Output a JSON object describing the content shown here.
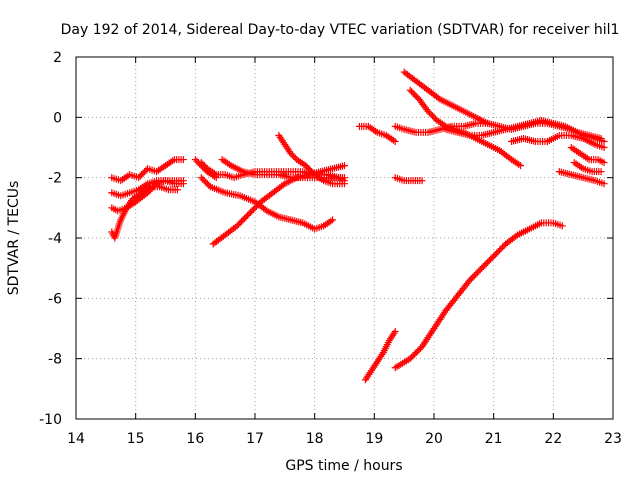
{
  "chart_data": {
    "type": "scatter",
    "title": "Day 192 of 2014, Sidereal Day-to-day VTEC variation (SDTVAR) for receiver hil1",
    "xlabel": "GPS time / hours",
    "ylabel": "SDTVAR / TECUs",
    "xlim": [
      14,
      23
    ],
    "ylim": [
      -10,
      2
    ],
    "xticks": [
      "14",
      "15",
      "16",
      "17",
      "18",
      "19",
      "20",
      "21",
      "22",
      "23"
    ],
    "yticks": [
      "-10",
      "-8",
      "-6",
      "-4",
      "-2",
      "0",
      "2"
    ],
    "grid": true,
    "marker": "+",
    "color": "#ff0000",
    "series": [
      {
        "name": "s1",
        "points": [
          [
            14.6,
            -2.0
          ],
          [
            14.75,
            -2.1
          ],
          [
            14.9,
            -1.9
          ],
          [
            15.05,
            -2.0
          ],
          [
            15.2,
            -1.7
          ],
          [
            15.35,
            -1.8
          ],
          [
            15.5,
            -1.6
          ],
          [
            15.65,
            -1.4
          ],
          [
            15.8,
            -1.4
          ]
        ]
      },
      {
        "name": "s2",
        "points": [
          [
            14.6,
            -3.0
          ],
          [
            14.7,
            -3.1
          ],
          [
            14.85,
            -3.0
          ],
          [
            15.0,
            -2.8
          ],
          [
            15.2,
            -2.5
          ],
          [
            15.35,
            -2.2
          ],
          [
            15.5,
            -2.1
          ],
          [
            15.65,
            -2.2
          ],
          [
            15.8,
            -2.2
          ]
        ]
      },
      {
        "name": "s3",
        "points": [
          [
            14.6,
            -3.8
          ],
          [
            14.65,
            -4.0
          ],
          [
            14.75,
            -3.4
          ],
          [
            14.85,
            -3.0
          ],
          [
            14.95,
            -2.7
          ],
          [
            15.1,
            -2.5
          ],
          [
            15.25,
            -2.3
          ],
          [
            15.4,
            -2.3
          ],
          [
            15.55,
            -2.4
          ],
          [
            15.7,
            -2.4
          ]
        ]
      },
      {
        "name": "s4",
        "points": [
          [
            14.6,
            -2.5
          ],
          [
            14.75,
            -2.6
          ],
          [
            14.9,
            -2.5
          ],
          [
            15.05,
            -2.4
          ],
          [
            15.2,
            -2.2
          ],
          [
            15.35,
            -2.1
          ],
          [
            15.5,
            -2.1
          ],
          [
            15.65,
            -2.1
          ],
          [
            15.8,
            -2.1
          ]
        ]
      },
      {
        "name": "s5",
        "points": [
          [
            16.1,
            -1.5
          ],
          [
            16.2,
            -1.7
          ],
          [
            16.35,
            -1.9
          ],
          [
            16.5,
            -1.9
          ],
          [
            16.65,
            -2.0
          ],
          [
            16.8,
            -1.9
          ],
          [
            17.0,
            -1.8
          ],
          [
            17.2,
            -1.8
          ],
          [
            17.4,
            -1.8
          ],
          [
            17.6,
            -1.8
          ],
          [
            17.8,
            -1.8
          ],
          [
            18.0,
            -1.9
          ],
          [
            18.2,
            -1.9
          ],
          [
            18.4,
            -2.0
          ],
          [
            18.5,
            -2.0
          ]
        ]
      },
      {
        "name": "s6",
        "points": [
          [
            16.1,
            -2.0
          ],
          [
            16.25,
            -2.3
          ],
          [
            16.5,
            -2.5
          ],
          [
            16.75,
            -2.6
          ],
          [
            17.0,
            -2.8
          ],
          [
            17.2,
            -3.1
          ],
          [
            17.4,
            -3.3
          ],
          [
            17.6,
            -3.4
          ],
          [
            17.8,
            -3.5
          ],
          [
            18.0,
            -3.7
          ],
          [
            18.15,
            -3.6
          ],
          [
            18.3,
            -3.4
          ]
        ]
      },
      {
        "name": "s7",
        "points": [
          [
            16.3,
            -4.2
          ],
          [
            16.5,
            -3.9
          ],
          [
            16.7,
            -3.6
          ],
          [
            16.9,
            -3.2
          ],
          [
            17.1,
            -2.8
          ],
          [
            17.3,
            -2.5
          ],
          [
            17.5,
            -2.2
          ],
          [
            17.7,
            -2.0
          ],
          [
            17.9,
            -1.9
          ],
          [
            18.1,
            -1.8
          ],
          [
            18.3,
            -1.7
          ],
          [
            18.5,
            -1.6
          ]
        ]
      },
      {
        "name": "s8",
        "points": [
          [
            16.45,
            -1.4
          ],
          [
            16.6,
            -1.6
          ],
          [
            16.8,
            -1.8
          ],
          [
            17.0,
            -1.9
          ],
          [
            17.2,
            -1.9
          ],
          [
            17.4,
            -1.9
          ],
          [
            17.6,
            -2.0
          ],
          [
            17.8,
            -2.0
          ],
          [
            18.0,
            -2.0
          ],
          [
            18.2,
            -2.0
          ],
          [
            18.4,
            -2.0
          ],
          [
            18.5,
            -2.1
          ]
        ]
      },
      {
        "name": "s9",
        "points": [
          [
            17.4,
            -0.6
          ],
          [
            17.5,
            -0.9
          ],
          [
            17.6,
            -1.2
          ],
          [
            17.7,
            -1.4
          ],
          [
            17.85,
            -1.6
          ],
          [
            18.0,
            -1.9
          ],
          [
            18.15,
            -2.1
          ],
          [
            18.3,
            -2.2
          ],
          [
            18.5,
            -2.2
          ]
        ]
      },
      {
        "name": "s10",
        "points": [
          [
            16.0,
            -1.4
          ],
          [
            16.1,
            -1.6
          ],
          [
            16.2,
            -1.8
          ],
          [
            16.35,
            -2.0
          ]
        ]
      },
      {
        "name": "s11",
        "points": [
          [
            18.75,
            -0.3
          ],
          [
            18.9,
            -0.3
          ],
          [
            19.05,
            -0.5
          ],
          [
            19.2,
            -0.6
          ],
          [
            19.35,
            -0.8
          ]
        ]
      },
      {
        "name": "s12",
        "points": [
          [
            19.35,
            -0.3
          ],
          [
            19.5,
            -0.4
          ],
          [
            19.7,
            -0.5
          ],
          [
            19.9,
            -0.5
          ],
          [
            20.1,
            -0.4
          ],
          [
            20.3,
            -0.3
          ],
          [
            20.5,
            -0.3
          ],
          [
            20.7,
            -0.2
          ],
          [
            20.9,
            -0.2
          ]
        ]
      },
      {
        "name": "s13",
        "points": [
          [
            19.5,
            1.5
          ],
          [
            19.7,
            1.2
          ],
          [
            19.9,
            0.9
          ],
          [
            20.1,
            0.6
          ],
          [
            20.3,
            0.4
          ],
          [
            20.5,
            0.2
          ],
          [
            20.7,
            0.0
          ],
          [
            20.9,
            -0.2
          ],
          [
            21.1,
            -0.3
          ],
          [
            21.3,
            -0.4
          ],
          [
            21.5,
            -0.3
          ],
          [
            21.7,
            -0.2
          ],
          [
            21.9,
            -0.2
          ],
          [
            22.1,
            -0.3
          ],
          [
            22.3,
            -0.4
          ],
          [
            22.5,
            -0.6
          ],
          [
            22.7,
            -0.7
          ],
          [
            22.85,
            -0.8
          ]
        ]
      },
      {
        "name": "s14",
        "points": [
          [
            19.6,
            0.9
          ],
          [
            19.75,
            0.6
          ],
          [
            19.9,
            0.2
          ],
          [
            20.05,
            -0.1
          ],
          [
            20.2,
            -0.3
          ],
          [
            20.35,
            -0.4
          ],
          [
            20.5,
            -0.5
          ],
          [
            20.7,
            -0.7
          ],
          [
            20.9,
            -0.9
          ],
          [
            21.1,
            -1.1
          ],
          [
            21.3,
            -1.4
          ],
          [
            21.45,
            -1.6
          ]
        ]
      },
      {
        "name": "s15",
        "points": [
          [
            20.2,
            -0.4
          ],
          [
            20.4,
            -0.5
          ],
          [
            20.6,
            -0.6
          ],
          [
            20.8,
            -0.6
          ],
          [
            21.0,
            -0.5
          ],
          [
            21.2,
            -0.4
          ],
          [
            21.4,
            -0.3
          ],
          [
            21.6,
            -0.2
          ],
          [
            21.8,
            -0.1
          ],
          [
            22.0,
            -0.2
          ],
          [
            22.2,
            -0.3
          ],
          [
            22.4,
            -0.5
          ],
          [
            22.6,
            -0.6
          ],
          [
            22.8,
            -0.7
          ]
        ]
      },
      {
        "name": "s16",
        "points": [
          [
            21.3,
            -0.8
          ],
          [
            21.5,
            -0.7
          ],
          [
            21.7,
            -0.8
          ],
          [
            21.9,
            -0.8
          ],
          [
            22.1,
            -0.6
          ],
          [
            22.3,
            -0.6
          ],
          [
            22.5,
            -0.7
          ],
          [
            22.7,
            -0.9
          ],
          [
            22.85,
            -1.0
          ]
        ]
      },
      {
        "name": "s17",
        "points": [
          [
            22.3,
            -1.0
          ],
          [
            22.45,
            -1.2
          ],
          [
            22.6,
            -1.4
          ],
          [
            22.75,
            -1.4
          ],
          [
            22.85,
            -1.5
          ]
        ]
      },
      {
        "name": "s18",
        "points": [
          [
            22.35,
            -1.5
          ],
          [
            22.5,
            -1.7
          ],
          [
            22.65,
            -1.8
          ],
          [
            22.8,
            -1.8
          ]
        ]
      },
      {
        "name": "s19",
        "points": [
          [
            22.1,
            -1.8
          ],
          [
            22.3,
            -1.9
          ],
          [
            22.5,
            -2.0
          ],
          [
            22.7,
            -2.1
          ],
          [
            22.85,
            -2.2
          ]
        ]
      },
      {
        "name": "s20",
        "points": [
          [
            19.35,
            -2.0
          ],
          [
            19.5,
            -2.1
          ],
          [
            19.65,
            -2.1
          ],
          [
            19.8,
            -2.1
          ]
        ]
      },
      {
        "name": "s21",
        "points": [
          [
            18.85,
            -8.7
          ],
          [
            18.95,
            -8.4
          ],
          [
            19.05,
            -8.1
          ],
          [
            19.15,
            -7.8
          ],
          [
            19.25,
            -7.4
          ],
          [
            19.35,
            -7.1
          ]
        ]
      },
      {
        "name": "s22",
        "points": [
          [
            19.35,
            -8.3
          ],
          [
            19.6,
            -8.0
          ],
          [
            19.8,
            -7.6
          ],
          [
            20.0,
            -7.0
          ],
          [
            20.2,
            -6.4
          ],
          [
            20.4,
            -5.9
          ],
          [
            20.6,
            -5.4
          ],
          [
            20.8,
            -5.0
          ],
          [
            21.0,
            -4.6
          ],
          [
            21.2,
            -4.2
          ],
          [
            21.4,
            -3.9
          ],
          [
            21.6,
            -3.7
          ],
          [
            21.8,
            -3.5
          ],
          [
            22.0,
            -3.5
          ],
          [
            22.15,
            -3.6
          ]
        ]
      }
    ]
  }
}
